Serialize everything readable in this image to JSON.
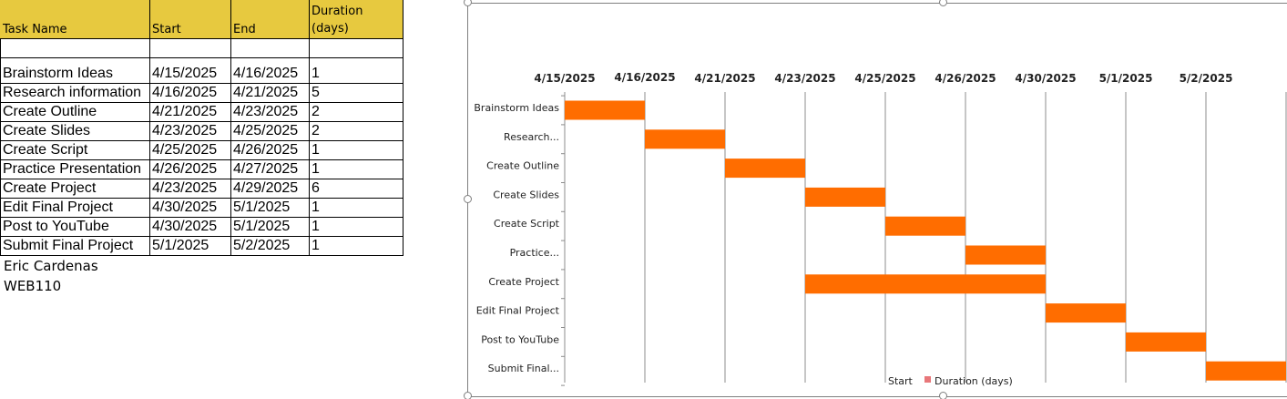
{
  "sheet": {
    "headers": [
      "Task Name",
      "Start",
      "End",
      "Duration\n(days)"
    ],
    "header_color": "#e7c93f",
    "rows": [
      [
        "Brainstorm Ideas",
        "4/15/2025",
        "4/16/2025",
        "1"
      ],
      [
        "Research information",
        "4/16/2025",
        "4/21/2025",
        "5"
      ],
      [
        "Create Outline",
        "4/21/2025",
        "4/23/2025",
        "2"
      ],
      [
        "Create Slides",
        "4/23/2025",
        "4/25/2025",
        "2"
      ],
      [
        "Create Script",
        "4/25/2025",
        "4/26/2025",
        "1"
      ],
      [
        "Practice Presentation",
        "4/26/2025",
        "4/27/2025",
        "1"
      ],
      [
        "Create Project",
        "4/23/2025",
        "4/29/2025",
        "6"
      ],
      [
        "Edit Final Project",
        "4/30/2025",
        "5/1/2025",
        "1"
      ],
      [
        "Post to YouTube",
        "4/30/2025",
        "5/1/2025",
        "1"
      ],
      [
        "Submit Final Project",
        "5/1/2025",
        "5/2/2025",
        "1"
      ]
    ],
    "notes": [
      "Eric Cardenas",
      "WEB110"
    ]
  },
  "chart_data": {
    "type": "bar",
    "orientation": "horizontal-stacked-gantt",
    "x_tick_labels": [
      "4/15/2025",
      "4/16/2025",
      "4/21/2025",
      "4/23/2025",
      "4/25/2025",
      "4/26/2025",
      "4/30/2025",
      "5/1/2025",
      "5/2/2025"
    ],
    "categories": [
      "Brainstorm Ideas",
      "Research...",
      "Create Outline",
      "Create Slides",
      "Create Script",
      "Practice...",
      "Create Project",
      "Edit Final Project",
      "Post to YouTube",
      "Submit Final..."
    ],
    "series": [
      {
        "name": "Start",
        "values": [
          "4/15/2025",
          "4/16/2025",
          "4/21/2025",
          "4/23/2025",
          "4/25/2025",
          "4/26/2025",
          "4/23/2025",
          "4/30/2025",
          "4/30/2025",
          "5/1/2025"
        ],
        "visible": false
      },
      {
        "name": "Duration (days)",
        "values": [
          1,
          5,
          2,
          2,
          1,
          1,
          6,
          1,
          1,
          1
        ],
        "color": "#ff6d00"
      }
    ],
    "bar_span_ticks": [
      [
        0,
        1
      ],
      [
        1,
        2
      ],
      [
        2,
        3
      ],
      [
        3,
        4
      ],
      [
        4,
        5
      ],
      [
        5,
        6
      ],
      [
        3,
        6
      ],
      [
        6,
        7
      ],
      [
        7,
        8
      ],
      [
        8,
        9
      ]
    ],
    "legend": {
      "position": "bottom",
      "entries": [
        "Start",
        "Duration (days)"
      ],
      "swatch_color": "#e8777a"
    },
    "grid": "vertical"
  }
}
